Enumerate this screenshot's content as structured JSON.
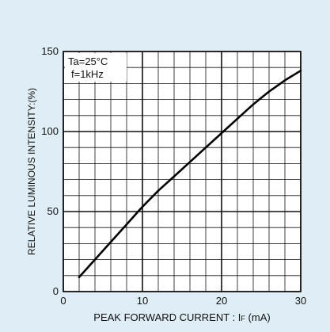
{
  "chart_data": {
    "type": "line",
    "title": "",
    "xlabel": "PEAK  FORWARD CURRENT : I",
    "xlabel_subscript": "F",
    "xlabel_unit": " (mA)",
    "ylabel": "RELATIVE LUMINOUS INTENSITY:(%)",
    "xlim": [
      0,
      30
    ],
    "ylim": [
      0,
      150
    ],
    "x_ticks": [
      0,
      10,
      20,
      30
    ],
    "y_ticks": [
      0,
      50,
      100,
      150
    ],
    "x_minor_step": 2,
    "y_minor_step": 10,
    "grid": true,
    "annotations": [
      "Ta=25°C",
      "f=1kHz"
    ],
    "series": [
      {
        "x": [
          2,
          4,
          6,
          8,
          10,
          12,
          14,
          16,
          18,
          20,
          22,
          24,
          26,
          28,
          30
        ],
        "y": [
          9,
          20,
          31,
          42,
          53,
          63,
          72,
          81,
          90,
          99,
          108,
          117,
          125,
          132,
          138
        ]
      }
    ],
    "colors": {
      "background": "#dfeef6",
      "plot_area": "#ffffff",
      "grid": "#111111",
      "line": "#000000"
    }
  }
}
